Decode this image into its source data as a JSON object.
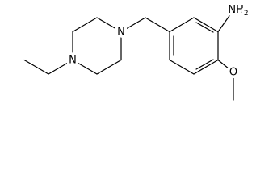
{
  "atoms": [
    {
      "symbol": "NH",
      "subscript": "2"
    },
    {
      "symbol": "N"
    },
    {
      "symbol": "N"
    },
    {
      "symbol": "O"
    }
  ]
}
